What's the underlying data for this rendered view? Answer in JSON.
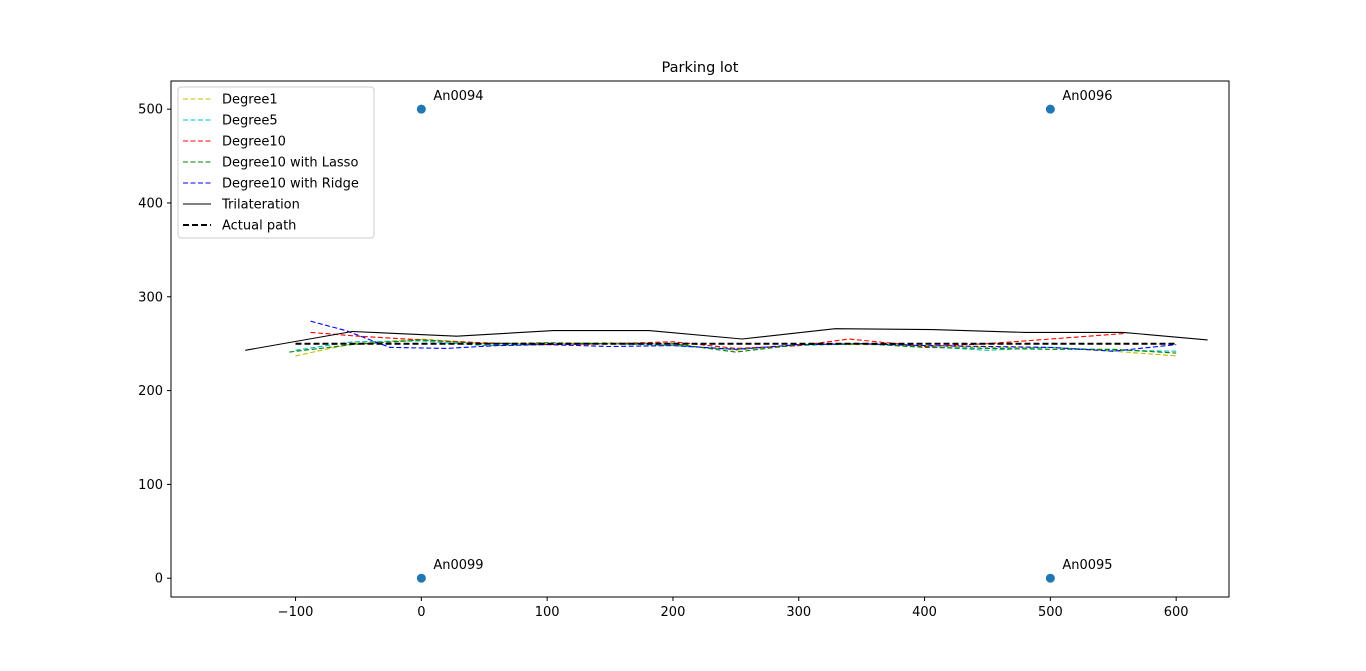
{
  "chart_data": {
    "type": "line",
    "title": "Parking lot",
    "xlabel": "",
    "ylabel": "",
    "xlim": [
      -199,
      642
    ],
    "ylim": [
      -20,
      530
    ],
    "x_ticks": [
      -100,
      0,
      100,
      200,
      300,
      400,
      500,
      600
    ],
    "y_ticks": [
      0,
      100,
      200,
      300,
      400,
      500
    ],
    "grid": false,
    "legend_position": "top-left",
    "anchors": [
      {
        "label": "An0094",
        "x": 0,
        "y": 500
      },
      {
        "label": "An0096",
        "x": 500,
        "y": 500
      },
      {
        "label": "An0099",
        "x": 0,
        "y": 0
      },
      {
        "label": "An0095",
        "x": 500,
        "y": 0
      }
    ],
    "anchor_color": "#1f77b4",
    "series": [
      {
        "name": "Degree1",
        "color": "#bfbf00",
        "style": "dashed",
        "x": [
          -100,
          -55,
          0,
          50,
          100,
          150,
          200,
          250,
          300,
          350,
          400,
          450,
          500,
          550,
          600
        ],
        "y": [
          237,
          250,
          255,
          250,
          250,
          251,
          249,
          243,
          249,
          249,
          248,
          246,
          246,
          242,
          237
        ]
      },
      {
        "name": "Degree5",
        "color": "#00bfbf",
        "style": "dashed",
        "x": [
          -100,
          -55,
          0,
          50,
          100,
          150,
          200,
          250,
          300,
          350,
          400,
          450,
          500,
          550,
          600
        ],
        "y": [
          243,
          252,
          253,
          248,
          249,
          250,
          248,
          244,
          248,
          250,
          247,
          243,
          246,
          243,
          242
        ]
      },
      {
        "name": "Degree10",
        "color": "#ff0000",
        "style": "dashed",
        "x": [
          -88,
          -50,
          0,
          50,
          100,
          150,
          200,
          250,
          300,
          340,
          400,
          450,
          500,
          560
        ],
        "y": [
          262,
          258,
          254,
          251,
          249,
          250,
          252,
          245,
          248,
          255,
          247,
          250,
          255,
          261
        ]
      },
      {
        "name": "Degree10 with Lasso",
        "color": "#008000",
        "style": "dashed",
        "x": [
          -105,
          -55,
          0,
          50,
          100,
          150,
          200,
          250,
          300,
          350,
          400,
          450,
          500,
          550,
          600
        ],
        "y": [
          241,
          249,
          254,
          250,
          251,
          250,
          250,
          241,
          249,
          250,
          246,
          245,
          244,
          244,
          240
        ]
      },
      {
        "name": "Degree10 with Ridge",
        "color": "#0000ff",
        "style": "dashed",
        "x": [
          -88,
          -60,
          -25,
          20,
          60,
          100,
          150,
          200,
          250,
          300,
          350,
          400,
          450,
          500,
          550,
          600
        ],
        "y": [
          274,
          264,
          246,
          245,
          248,
          249,
          247,
          248,
          244,
          249,
          250,
          248,
          247,
          246,
          242,
          249
        ]
      },
      {
        "name": "Trilateration",
        "color": "#000000",
        "style": "solid",
        "x": [
          -140,
          -55,
          28,
          105,
          181,
          255,
          329,
          406,
          480,
          558,
          625
        ],
        "y": [
          243,
          263,
          258,
          264,
          264,
          255,
          266,
          265,
          262,
          262,
          254
        ]
      },
      {
        "name": "Actual path",
        "color": "#000000",
        "style": "dashed-thick",
        "x": [
          -100,
          600
        ],
        "y": [
          250,
          250
        ]
      }
    ]
  }
}
